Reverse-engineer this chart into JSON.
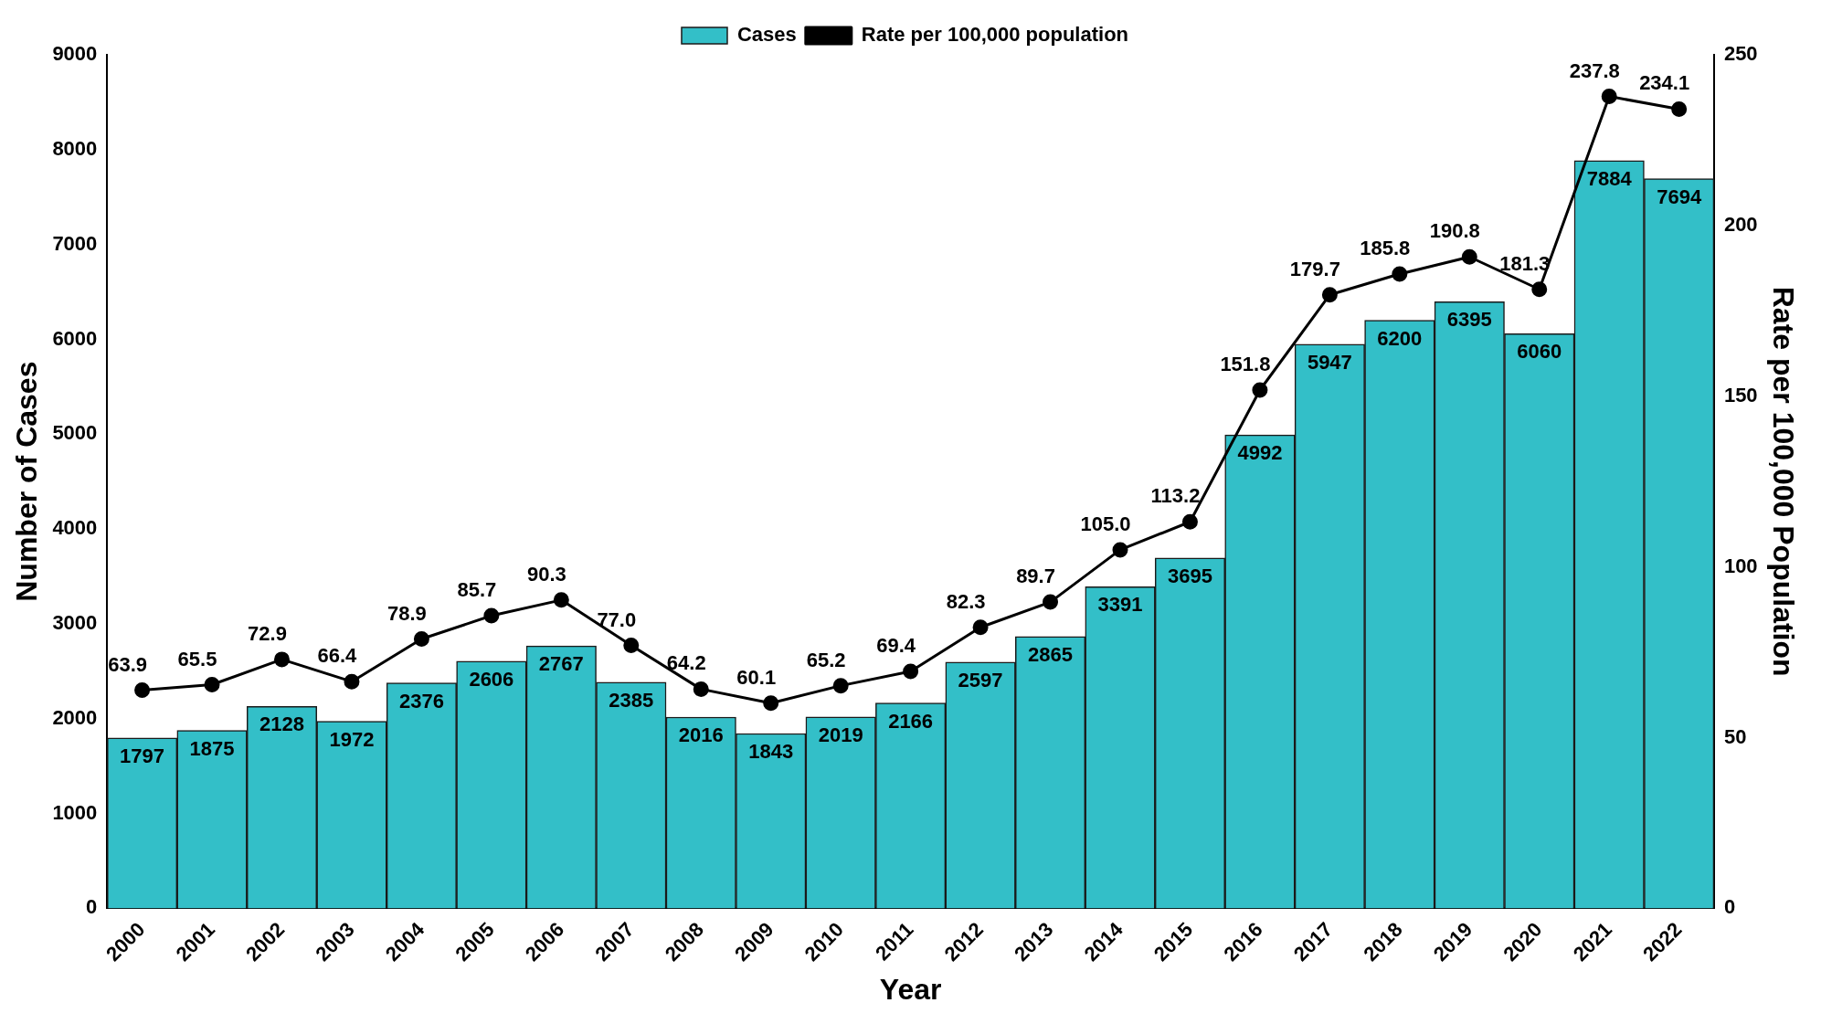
{
  "chart_data": {
    "type": "bar",
    "xlabel": "Year",
    "ylabel": "Number of Cases",
    "y2label": "Rate per 100,000 Population",
    "categories": [
      "2000",
      "2001",
      "2002",
      "2003",
      "2004",
      "2005",
      "2006",
      "2007",
      "2008",
      "2009",
      "2010",
      "2011",
      "2012",
      "2013",
      "2014",
      "2015",
      "2016",
      "2017",
      "2018",
      "2019",
      "2020",
      "2021",
      "2022"
    ],
    "series": [
      {
        "name": "Cases",
        "color": "#33bfc8",
        "values": [
          1797,
          1875,
          2128,
          1972,
          2376,
          2606,
          2767,
          2385,
          2016,
          1843,
          2019,
          2166,
          2597,
          2865,
          3391,
          3695,
          4992,
          5947,
          6200,
          6395,
          6060,
          7884,
          7694
        ]
      },
      {
        "name": "Rate per 100,000 population",
        "type": "line",
        "axis": "y2",
        "color": "#000000",
        "values": [
          63.9,
          65.5,
          72.9,
          66.4,
          78.9,
          85.7,
          90.3,
          77.0,
          64.2,
          60.1,
          65.2,
          69.4,
          82.3,
          89.7,
          105.0,
          113.2,
          151.8,
          179.7,
          185.8,
          190.8,
          181.3,
          237.8,
          234.1
        ],
        "value_labels": [
          "63.9",
          "65.5",
          "72.9",
          "66.4",
          "78.9",
          "85.7",
          "90.3",
          "77.0",
          "64.2",
          "60.1",
          "65.2",
          "69.4",
          "82.3",
          "89.7",
          "105.0",
          "113.2",
          "151.8",
          "179.7",
          "185.8",
          "190.8",
          "181.3",
          "237.8",
          "234.1"
        ]
      }
    ],
    "ylim": [
      0,
      9000
    ],
    "yticks": [
      0,
      1000,
      2000,
      3000,
      4000,
      5000,
      6000,
      7000,
      8000,
      9000
    ],
    "y2lim": [
      0,
      250
    ],
    "y2ticks": [
      0,
      50,
      100,
      150,
      200,
      250
    ],
    "data_labels": true,
    "legend": "top",
    "marker": "circle",
    "line_style": "solid",
    "grid": false
  }
}
